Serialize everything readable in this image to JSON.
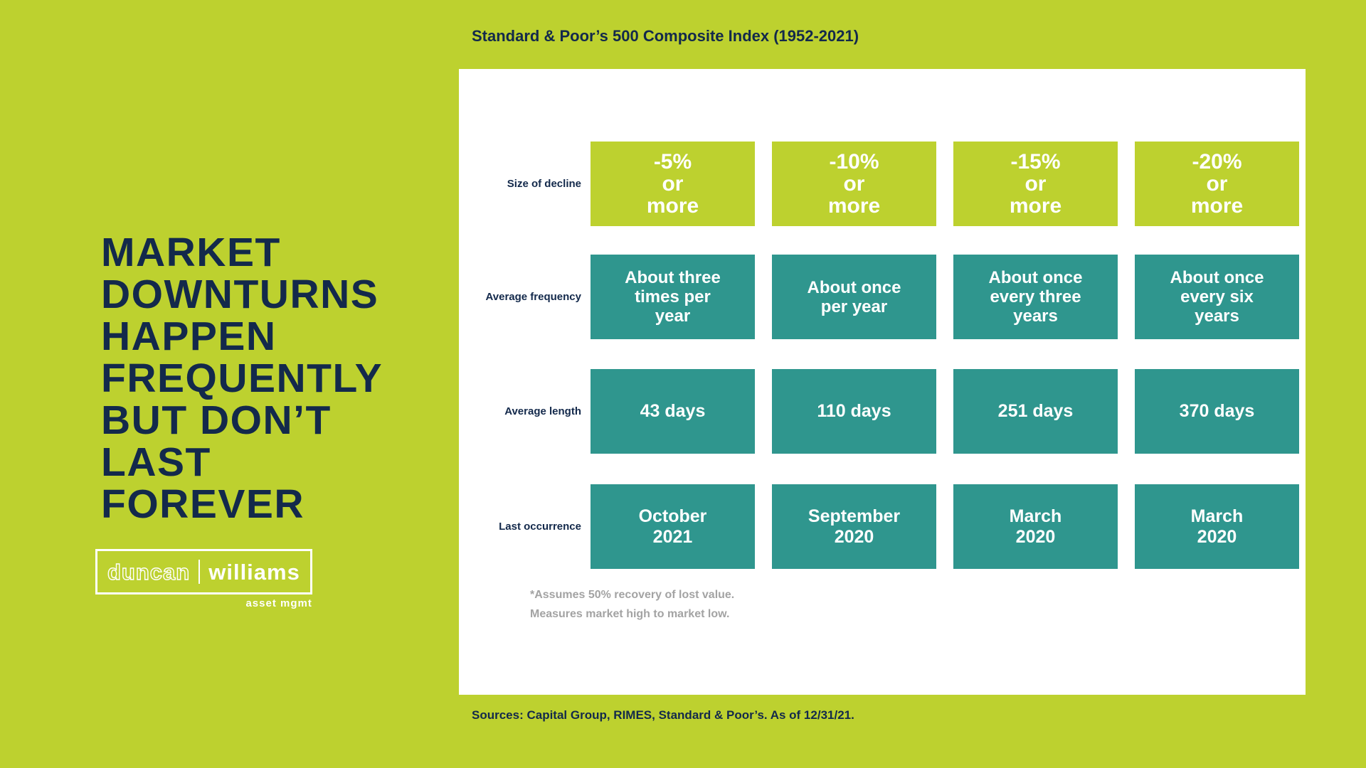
{
  "colors": {
    "background_lime": "#bdd12f",
    "navy": "#13294b",
    "teal": "#2f968e",
    "panel_white": "#ffffff",
    "footnote_gray": "#a3a3a3"
  },
  "headline": {
    "text": "MARKET\nDOWNTURNS\nHAPPEN\nFREQUENTLY\nBUT DON’T\nLAST\nFOREVER"
  },
  "logo": {
    "word1": "duncan",
    "word2": "williams",
    "tagline": "asset mgmt"
  },
  "chart": {
    "title": "Standard & Poor’s 500 Composite Index (1952-2021)",
    "rows": [
      {
        "label": "Size of decline",
        "cells": [
          "-5%\nor\nmore",
          "-10%\nor\nmore",
          "-15%\nor\nmore",
          "-20%\nor\nmore"
        ]
      },
      {
        "label": "Average frequency",
        "cells": [
          "About three\ntimes per\nyear",
          "About once\nper year",
          "About once\nevery three\nyears",
          "About once\nevery six\nyears"
        ]
      },
      {
        "label": "Average length",
        "cells": [
          "43 days",
          "110 days",
          "251 days",
          "370 days"
        ]
      },
      {
        "label": "Last occurrence",
        "cells": [
          "October\n2021",
          "September\n2020",
          "March\n2020",
          "March\n2020"
        ]
      }
    ],
    "footnotes": [
      "*Assumes 50% recovery of lost value.",
      "Measures market high to market low."
    ],
    "sources": "Sources: Capital Group, RIMES, Standard & Poor’s. As of 12/31/21."
  },
  "chart_data": {
    "type": "table",
    "title": "Standard & Poor’s 500 Composite Index (1952-2021)",
    "columns": [
      "-5% or more",
      "-10% or more",
      "-15% or more",
      "-20% or more"
    ],
    "rows": [
      {
        "label": "Size of decline",
        "values": [
          "-5% or more",
          "-10% or more",
          "-15% or more",
          "-20% or more"
        ]
      },
      {
        "label": "Average frequency",
        "values": [
          "About three times per year",
          "About once per year",
          "About once every three years",
          "About once every six years"
        ]
      },
      {
        "label": "Average length",
        "values": [
          "43 days",
          "110 days",
          "251 days",
          "370 days"
        ]
      },
      {
        "label": "Last occurrence",
        "values": [
          "October 2021",
          "September 2020",
          "March 2020",
          "March 2020"
        ]
      }
    ],
    "footnotes": [
      "*Assumes 50% recovery of lost value.",
      "Measures market high to market low."
    ],
    "source": "Sources: Capital Group, RIMES, Standard & Poor’s. As of 12/31/21."
  }
}
